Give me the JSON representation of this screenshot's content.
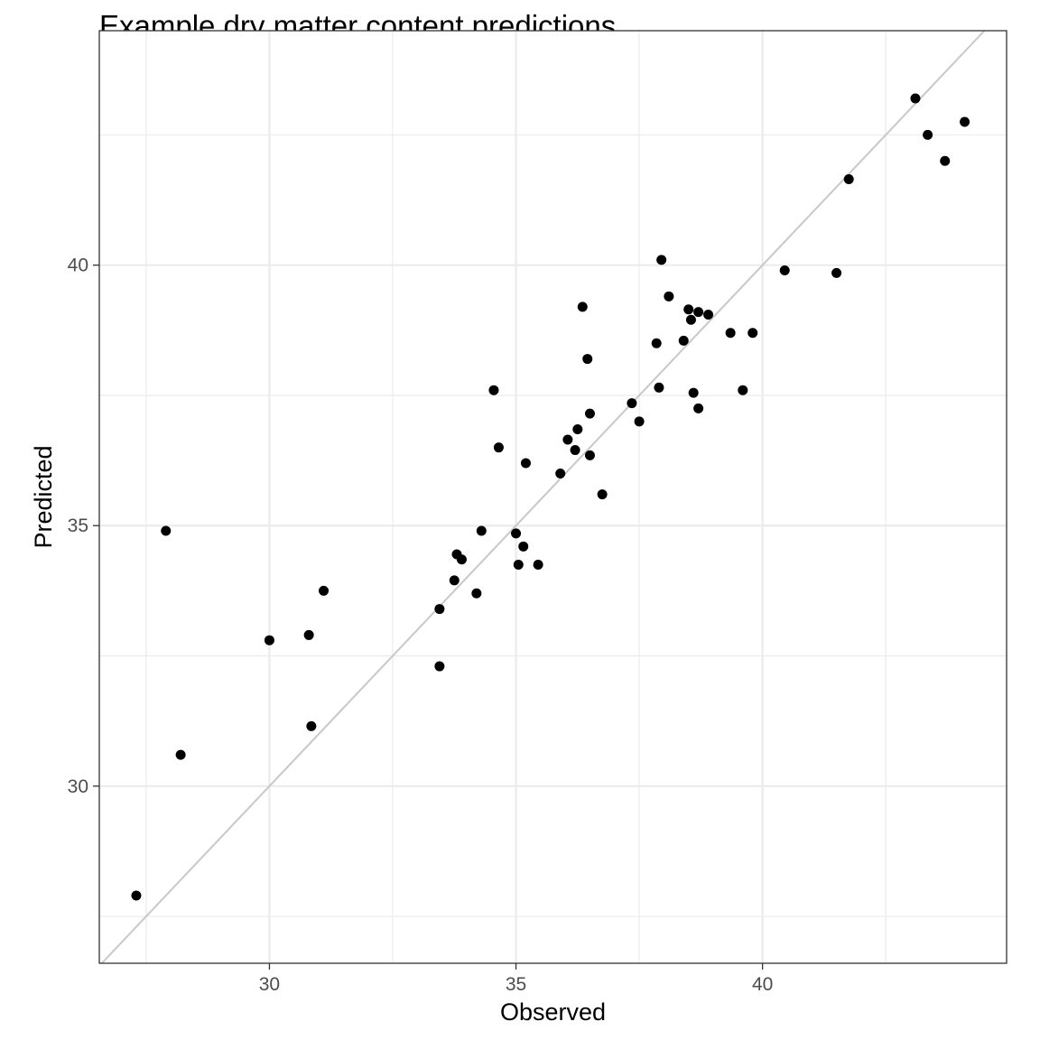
{
  "chart_data": {
    "type": "scatter",
    "title": "Example dry matter content predictions",
    "xlabel": "Observed",
    "ylabel": "Predicted",
    "xlim": [
      26.55,
      44.95
    ],
    "ylim": [
      26.6,
      44.5
    ],
    "x_ticks": [
      30,
      35,
      40
    ],
    "y_ticks": [
      30,
      35,
      40
    ],
    "x_minor": [
      27.5,
      32.5,
      37.5,
      42.5
    ],
    "y_minor": [
      27.5,
      32.5,
      37.5,
      42.5
    ],
    "grid": true,
    "reference_line": "y = x",
    "colors": {
      "points": "#000000",
      "reference_line": "#c8c8c8",
      "grid": "#ebebeb",
      "panel_border": "#333333",
      "tick_label": "#4d4d4d"
    },
    "points": [
      {
        "x": 27.3,
        "y": 27.9
      },
      {
        "x": 27.9,
        "y": 34.9
      },
      {
        "x": 28.2,
        "y": 30.6
      },
      {
        "x": 30.0,
        "y": 32.8
      },
      {
        "x": 30.8,
        "y": 32.9
      },
      {
        "x": 30.85,
        "y": 31.15
      },
      {
        "x": 31.1,
        "y": 33.75
      },
      {
        "x": 33.45,
        "y": 33.4
      },
      {
        "x": 33.45,
        "y": 32.3
      },
      {
        "x": 33.75,
        "y": 33.95
      },
      {
        "x": 33.8,
        "y": 34.45
      },
      {
        "x": 33.9,
        "y": 34.35
      },
      {
        "x": 34.2,
        "y": 33.7
      },
      {
        "x": 34.3,
        "y": 34.9
      },
      {
        "x": 34.55,
        "y": 37.6
      },
      {
        "x": 34.65,
        "y": 36.5
      },
      {
        "x": 35.0,
        "y": 34.85
      },
      {
        "x": 35.05,
        "y": 34.25
      },
      {
        "x": 35.15,
        "y": 34.6
      },
      {
        "x": 35.2,
        "y": 36.2
      },
      {
        "x": 35.45,
        "y": 34.25
      },
      {
        "x": 35.9,
        "y": 36.0
      },
      {
        "x": 36.05,
        "y": 36.65
      },
      {
        "x": 36.2,
        "y": 36.45
      },
      {
        "x": 36.25,
        "y": 36.85
      },
      {
        "x": 36.35,
        "y": 39.2
      },
      {
        "x": 36.45,
        "y": 38.2
      },
      {
        "x": 36.5,
        "y": 36.35
      },
      {
        "x": 36.5,
        "y": 37.15
      },
      {
        "x": 36.75,
        "y": 35.6
      },
      {
        "x": 37.35,
        "y": 37.35
      },
      {
        "x": 37.5,
        "y": 37.0
      },
      {
        "x": 37.85,
        "y": 38.5
      },
      {
        "x": 37.9,
        "y": 37.65
      },
      {
        "x": 37.95,
        "y": 40.1
      },
      {
        "x": 38.1,
        "y": 39.4
      },
      {
        "x": 38.4,
        "y": 38.55
      },
      {
        "x": 38.5,
        "y": 39.15
      },
      {
        "x": 38.55,
        "y": 38.95
      },
      {
        "x": 38.6,
        "y": 37.55
      },
      {
        "x": 38.7,
        "y": 37.25
      },
      {
        "x": 38.7,
        "y": 39.1
      },
      {
        "x": 38.9,
        "y": 39.05
      },
      {
        "x": 39.35,
        "y": 38.7
      },
      {
        "x": 39.6,
        "y": 37.6
      },
      {
        "x": 39.8,
        "y": 38.7
      },
      {
        "x": 40.45,
        "y": 39.9
      },
      {
        "x": 41.5,
        "y": 39.85
      },
      {
        "x": 41.75,
        "y": 41.65
      },
      {
        "x": 43.1,
        "y": 43.2
      },
      {
        "x": 43.35,
        "y": 42.5
      },
      {
        "x": 43.7,
        "y": 42.0
      },
      {
        "x": 44.1,
        "y": 42.75
      }
    ]
  }
}
